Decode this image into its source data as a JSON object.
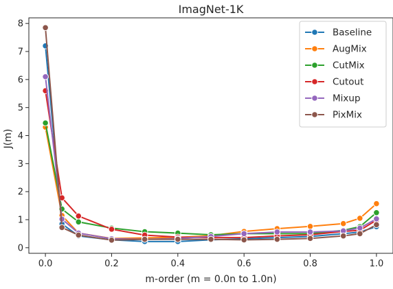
{
  "chart_data": {
    "type": "line",
    "title": "ImagNet-1K",
    "xlabel": "m-order (m = 0.0n to 1.0n)",
    "ylabel": "J(m)",
    "xlim": [
      -0.05,
      1.05
    ],
    "ylim": [
      -0.2,
      8.2
    ],
    "xticks": [
      0.0,
      0.2,
      0.4,
      0.6,
      0.8,
      1.0
    ],
    "xtick_labels": [
      "0.0",
      "0.2",
      "0.4",
      "0.6",
      "0.8",
      "1.0"
    ],
    "yticks": [
      0,
      1,
      2,
      3,
      4,
      5,
      6,
      7,
      8
    ],
    "ytick_labels": [
      "0",
      "1",
      "2",
      "3",
      "4",
      "5",
      "6",
      "7",
      "8"
    ],
    "grid": false,
    "legend_position": "top-right",
    "x": [
      0.0,
      0.05,
      0.1,
      0.2,
      0.3,
      0.4,
      0.5,
      0.6,
      0.7,
      0.8,
      0.9,
      0.95,
      1.0
    ],
    "series": [
      {
        "name": "Baseline",
        "color": "#1f77b4",
        "values": [
          7.2,
          0.85,
          0.42,
          0.28,
          0.22,
          0.22,
          0.28,
          0.32,
          0.36,
          0.4,
          0.5,
          0.56,
          0.75
        ]
      },
      {
        "name": "AugMix",
        "color": "#ff7f0e",
        "values": [
          4.3,
          1.15,
          0.52,
          0.33,
          0.35,
          0.37,
          0.43,
          0.58,
          0.68,
          0.76,
          0.86,
          1.05,
          1.57
        ]
      },
      {
        "name": "CutMix",
        "color": "#2ca02c",
        "values": [
          4.45,
          1.38,
          0.92,
          0.7,
          0.57,
          0.52,
          0.46,
          0.5,
          0.5,
          0.5,
          0.62,
          0.75,
          1.25
        ]
      },
      {
        "name": "Cutout",
        "color": "#d62728",
        "values": [
          5.6,
          1.78,
          1.13,
          0.66,
          0.45,
          0.38,
          0.36,
          0.36,
          0.42,
          0.46,
          0.58,
          0.62,
          0.98
        ]
      },
      {
        "name": "Mixup",
        "color": "#9467bd",
        "values": [
          6.1,
          1.02,
          0.52,
          0.32,
          0.3,
          0.33,
          0.4,
          0.5,
          0.56,
          0.56,
          0.6,
          0.7,
          1.03
        ]
      },
      {
        "name": "PixMix",
        "color": "#8c564b",
        "values": [
          7.85,
          0.72,
          0.45,
          0.27,
          0.3,
          0.3,
          0.3,
          0.28,
          0.3,
          0.33,
          0.42,
          0.5,
          0.82
        ]
      }
    ]
  }
}
